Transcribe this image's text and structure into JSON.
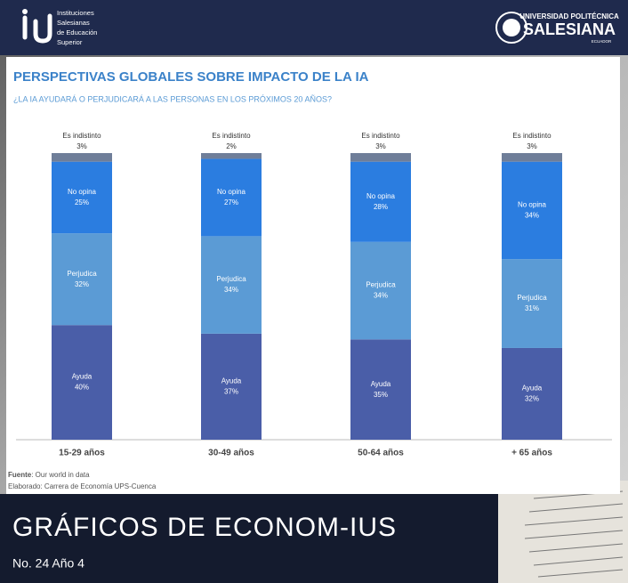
{
  "header": {
    "left_logo_lines": [
      "Instituciones",
      "Salesianas",
      "de Educación",
      "Superior"
    ],
    "right_logo_top": "UNIVERSIDAD POLITÉCNICA",
    "right_logo_main": "SALESIANA",
    "right_logo_sub": "ECUADOR"
  },
  "chart_data": {
    "type": "bar",
    "stacked": true,
    "title": "PERSPECTIVAS GLOBALES SOBRE IMPACTO DE LA IA",
    "subtitle": "¿LA IA AYUDARÁ O PERJUDICARÁ A LAS PERSONAS EN LOS PRÓXIMOS 20 AÑOS?",
    "categories": [
      "15-29 años",
      "30-49 años",
      "50-64 años",
      "+ 65 años"
    ],
    "ylim": [
      0,
      100
    ],
    "series": [
      {
        "name": "Ayuda",
        "color": "#4a5ea8",
        "values": [
          40,
          37,
          35,
          32
        ],
        "value_labels": [
          "40%",
          "37%",
          "35%",
          "32%"
        ]
      },
      {
        "name": "Perjudica",
        "color": "#5b9bd5",
        "values": [
          32,
          34,
          34,
          31
        ],
        "value_labels": [
          "32%",
          "34%",
          "34%",
          "31%"
        ]
      },
      {
        "name": "No opina",
        "color": "#2b7de0",
        "values": [
          25,
          27,
          28,
          34
        ],
        "value_labels": [
          "25%",
          "27%",
          "28%",
          "34%"
        ]
      },
      {
        "name": "Es indistinto",
        "color": "#6f7e99",
        "values": [
          3,
          2,
          3,
          3
        ],
        "value_labels": [
          "3%",
          "2%",
          "3%",
          "3%"
        ]
      }
    ],
    "source_label": "Fuente",
    "source": ": Our world in data",
    "credit": "Elaborado: Carrera de Economía UPS-Cuenca"
  },
  "footer": {
    "title": "GRÁFICOS DE ECONOM-IUS",
    "issue": "No. 24 Año 4"
  }
}
